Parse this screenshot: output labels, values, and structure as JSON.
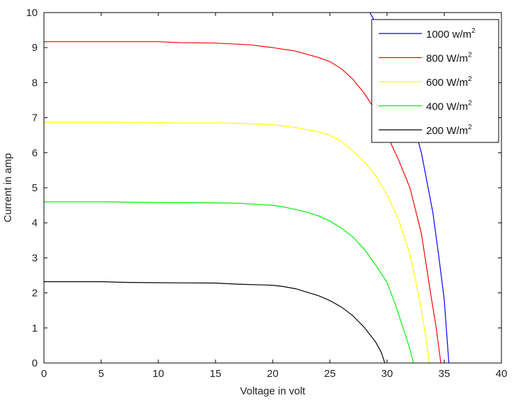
{
  "chart_data": {
    "type": "line",
    "title": "",
    "xlabel": "Voltage in volt",
    "ylabel": "Current in amp",
    "xlim": [
      0,
      40
    ],
    "ylim": [
      0,
      10
    ],
    "xticks": [
      0,
      5,
      10,
      15,
      20,
      25,
      30,
      35,
      40
    ],
    "yticks": [
      0,
      1,
      2,
      3,
      4,
      5,
      6,
      7,
      8,
      9,
      10
    ],
    "grid": false,
    "legend_position": "top-right",
    "series": [
      {
        "name": "1000 w/m",
        "name_superscript": "2",
        "color": "#0000ff",
        "points": [
          [
            28.5,
            10.0
          ],
          [
            30,
            9.1
          ],
          [
            31,
            8.2
          ],
          [
            32,
            7.2
          ],
          [
            33,
            6.0
          ],
          [
            34,
            4.3
          ],
          [
            34.5,
            3.1
          ],
          [
            35,
            1.8
          ],
          [
            35.4,
            0
          ]
        ]
      },
      {
        "name": "800 W/m",
        "name_superscript": "2",
        "color": "#ff0000",
        "points": [
          [
            0,
            9.17
          ],
          [
            5,
            9.17
          ],
          [
            10,
            9.17
          ],
          [
            12,
            9.14
          ],
          [
            15,
            9.13
          ],
          [
            18,
            9.08
          ],
          [
            20,
            9.0
          ],
          [
            22,
            8.9
          ],
          [
            24,
            8.72
          ],
          [
            25,
            8.6
          ],
          [
            26,
            8.4
          ],
          [
            27,
            8.1
          ],
          [
            28,
            7.7
          ],
          [
            29,
            7.2
          ],
          [
            30,
            6.5
          ],
          [
            31,
            5.8
          ],
          [
            32,
            5.0
          ],
          [
            33,
            3.7
          ],
          [
            33.8,
            2.0
          ],
          [
            34.3,
            1.0
          ],
          [
            34.7,
            0
          ]
        ]
      },
      {
        "name": "600 W/m",
        "name_superscript": "2",
        "color": "#ffff00",
        "points": [
          [
            0,
            6.87
          ],
          [
            5,
            6.87
          ],
          [
            10,
            6.86
          ],
          [
            12,
            6.85
          ],
          [
            15,
            6.85
          ],
          [
            17,
            6.84
          ],
          [
            20,
            6.8
          ],
          [
            22,
            6.72
          ],
          [
            24,
            6.6
          ],
          [
            25,
            6.5
          ],
          [
            26,
            6.33
          ],
          [
            27,
            6.05
          ],
          [
            28,
            5.75
          ],
          [
            29,
            5.35
          ],
          [
            30,
            4.8
          ],
          [
            31,
            4.1
          ],
          [
            32,
            3.1
          ],
          [
            32.6,
            2.2
          ],
          [
            33,
            1.5
          ],
          [
            33.4,
            0.7
          ],
          [
            33.7,
            0
          ]
        ]
      },
      {
        "name": "400 W/m",
        "name_superscript": "2",
        "color": "#00ee00",
        "points": [
          [
            0,
            4.6
          ],
          [
            5,
            4.6
          ],
          [
            10,
            4.58
          ],
          [
            15,
            4.57
          ],
          [
            17,
            4.56
          ],
          [
            20,
            4.5
          ],
          [
            21,
            4.45
          ],
          [
            22,
            4.38
          ],
          [
            23,
            4.3
          ],
          [
            24,
            4.2
          ],
          [
            25,
            4.05
          ],
          [
            26,
            3.85
          ],
          [
            27,
            3.6
          ],
          [
            28,
            3.25
          ],
          [
            29,
            2.8
          ],
          [
            30,
            2.3
          ],
          [
            30.8,
            1.6
          ],
          [
            31.5,
            0.9
          ],
          [
            32,
            0.4
          ],
          [
            32.3,
            0
          ]
        ]
      },
      {
        "name": "200 W/m",
        "name_superscript": "2",
        "color": "#000000",
        "points": [
          [
            0,
            2.32
          ],
          [
            5,
            2.32
          ],
          [
            7,
            2.3
          ],
          [
            10,
            2.29
          ],
          [
            15,
            2.28
          ],
          [
            17,
            2.25
          ],
          [
            20,
            2.22
          ],
          [
            21,
            2.18
          ],
          [
            22,
            2.12
          ],
          [
            23,
            2.02
          ],
          [
            24,
            1.92
          ],
          [
            25,
            1.78
          ],
          [
            26,
            1.6
          ],
          [
            27,
            1.35
          ],
          [
            28,
            1.02
          ],
          [
            29,
            0.6
          ],
          [
            29.5,
            0.3
          ],
          [
            29.8,
            0
          ]
        ]
      }
    ]
  }
}
